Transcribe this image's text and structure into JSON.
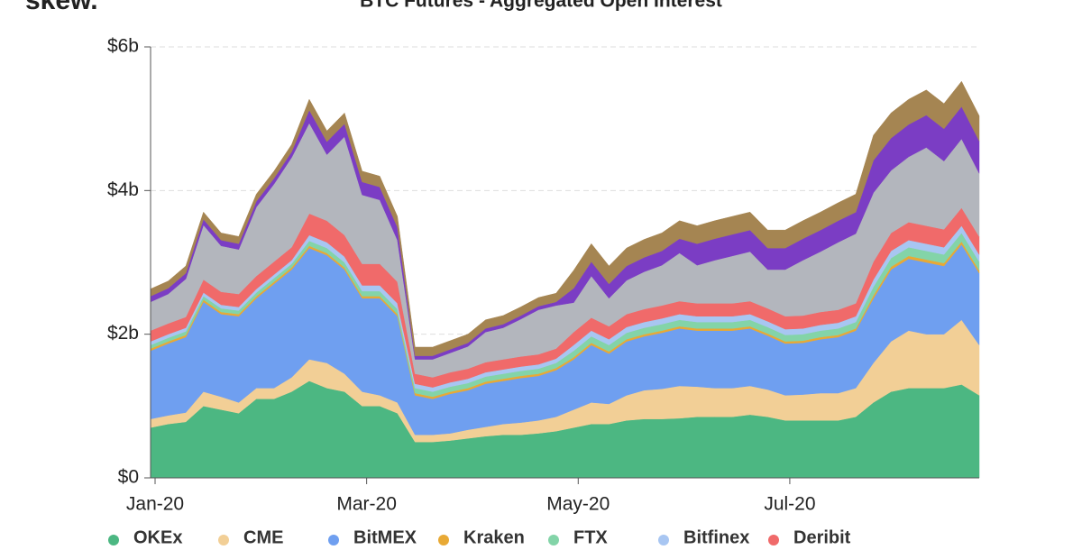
{
  "logo": "skew.",
  "chart_data": {
    "type": "stacked-area",
    "title": "BTC Futures - Aggregated Open Interest",
    "categories": [
      "Jan-20",
      null,
      null,
      null,
      null,
      null,
      null,
      null,
      null,
      null,
      null,
      null,
      "Mar-20",
      null,
      null,
      null,
      null,
      null,
      null,
      null,
      null,
      null,
      null,
      null,
      "May-20",
      null,
      null,
      null,
      null,
      null,
      null,
      null,
      null,
      null,
      null,
      null,
      "Jul-20",
      null,
      null,
      null,
      null,
      null,
      null,
      null,
      null,
      null,
      null,
      null
    ],
    "ylim": [
      0,
      6
    ],
    "yticks": [
      {
        "value": 0,
        "label": "$0"
      },
      {
        "value": 2,
        "label": "$2b"
      },
      {
        "value": 4,
        "label": "$4b"
      },
      {
        "value": 6,
        "label": "$6b"
      }
    ],
    "grid": true,
    "legend": "bottom",
    "series": [
      {
        "name": "OKEx",
        "color": "#4cb782",
        "values": [
          0.7,
          0.75,
          0.78,
          1.0,
          0.95,
          0.9,
          1.1,
          1.1,
          1.2,
          1.35,
          1.25,
          1.2,
          1.0,
          1.0,
          0.9,
          0.5,
          0.5,
          0.52,
          0.55,
          0.58,
          0.6,
          0.6,
          0.62,
          0.65,
          0.7,
          0.75,
          0.75,
          0.8,
          0.82,
          0.82,
          0.83,
          0.85,
          0.85,
          0.85,
          0.88,
          0.85,
          0.8,
          0.8,
          0.8,
          0.8,
          0.85,
          1.05,
          1.2,
          1.25,
          1.25,
          1.25,
          1.3,
          1.15
        ]
      },
      {
        "name": "CME",
        "color": "#f2cf96",
        "values": [
          0.12,
          0.12,
          0.13,
          0.2,
          0.18,
          0.15,
          0.15,
          0.15,
          0.2,
          0.3,
          0.35,
          0.25,
          0.2,
          0.15,
          0.15,
          0.1,
          0.1,
          0.1,
          0.12,
          0.13,
          0.15,
          0.17,
          0.18,
          0.2,
          0.25,
          0.3,
          0.28,
          0.35,
          0.4,
          0.42,
          0.45,
          0.42,
          0.4,
          0.4,
          0.4,
          0.38,
          0.35,
          0.36,
          0.38,
          0.38,
          0.4,
          0.55,
          0.7,
          0.8,
          0.75,
          0.75,
          0.9,
          0.7
        ]
      },
      {
        "name": "BitMEX",
        "color": "#6f9ff0",
        "values": [
          0.95,
          1.0,
          1.05,
          1.25,
          1.15,
          1.2,
          1.25,
          1.45,
          1.5,
          1.55,
          1.5,
          1.45,
          1.3,
          1.35,
          1.2,
          0.55,
          0.5,
          0.55,
          0.55,
          0.6,
          0.6,
          0.62,
          0.62,
          0.65,
          0.7,
          0.8,
          0.7,
          0.75,
          0.75,
          0.78,
          0.8,
          0.78,
          0.8,
          0.8,
          0.8,
          0.75,
          0.72,
          0.72,
          0.75,
          0.78,
          0.8,
          0.9,
          1.0,
          1.0,
          1.0,
          0.95,
          1.05,
          1.0
        ]
      },
      {
        "name": "Kraken",
        "color": "#e8a935",
        "values": [
          0.03,
          0.03,
          0.03,
          0.03,
          0.03,
          0.03,
          0.03,
          0.03,
          0.03,
          0.03,
          0.03,
          0.03,
          0.03,
          0.03,
          0.03,
          0.03,
          0.03,
          0.03,
          0.03,
          0.03,
          0.03,
          0.03,
          0.03,
          0.03,
          0.03,
          0.03,
          0.03,
          0.03,
          0.03,
          0.03,
          0.03,
          0.03,
          0.03,
          0.03,
          0.03,
          0.03,
          0.03,
          0.03,
          0.03,
          0.03,
          0.03,
          0.04,
          0.04,
          0.04,
          0.04,
          0.04,
          0.04,
          0.04
        ]
      },
      {
        "name": "FTX",
        "color": "#83d4a8",
        "values": [
          0.05,
          0.05,
          0.05,
          0.05,
          0.05,
          0.05,
          0.05,
          0.05,
          0.05,
          0.07,
          0.07,
          0.07,
          0.07,
          0.07,
          0.07,
          0.07,
          0.07,
          0.07,
          0.07,
          0.07,
          0.07,
          0.07,
          0.07,
          0.07,
          0.09,
          0.09,
          0.09,
          0.09,
          0.09,
          0.09,
          0.09,
          0.09,
          0.09,
          0.09,
          0.09,
          0.09,
          0.09,
          0.09,
          0.09,
          0.09,
          0.09,
          0.12,
          0.12,
          0.12,
          0.12,
          0.12,
          0.12,
          0.12
        ]
      },
      {
        "name": "Bitfinex",
        "color": "#a8c6f2",
        "values": [
          0.05,
          0.05,
          0.05,
          0.05,
          0.05,
          0.05,
          0.05,
          0.05,
          0.05,
          0.08,
          0.08,
          0.08,
          0.08,
          0.08,
          0.08,
          0.06,
          0.06,
          0.06,
          0.06,
          0.06,
          0.06,
          0.06,
          0.06,
          0.06,
          0.08,
          0.08,
          0.08,
          0.08,
          0.08,
          0.08,
          0.08,
          0.08,
          0.08,
          0.08,
          0.08,
          0.08,
          0.08,
          0.08,
          0.08,
          0.08,
          0.08,
          0.1,
          0.1,
          0.1,
          0.1,
          0.1,
          0.1,
          0.1
        ]
      },
      {
        "name": "Deribit",
        "color": "#f06a6a",
        "values": [
          0.15,
          0.15,
          0.15,
          0.18,
          0.18,
          0.18,
          0.18,
          0.18,
          0.18,
          0.3,
          0.3,
          0.3,
          0.3,
          0.3,
          0.3,
          0.14,
          0.14,
          0.14,
          0.14,
          0.14,
          0.14,
          0.14,
          0.14,
          0.14,
          0.18,
          0.18,
          0.18,
          0.18,
          0.18,
          0.18,
          0.18,
          0.18,
          0.18,
          0.18,
          0.18,
          0.18,
          0.18,
          0.18,
          0.18,
          0.18,
          0.18,
          0.25,
          0.25,
          0.25,
          0.25,
          0.25,
          0.25,
          0.25
        ]
      },
      {
        "color": "#b3b6bd",
        "values": [
          0.4,
          0.41,
          0.53,
          0.76,
          0.64,
          0.62,
          0.96,
          1.08,
          1.25,
          1.26,
          0.92,
          1.37,
          0.96,
          0.89,
          0.58,
          0.2,
          0.25,
          0.27,
          0.31,
          0.42,
          0.44,
          0.52,
          0.62,
          0.6,
          0.41,
          0.58,
          0.39,
          0.47,
          0.52,
          0.56,
          0.67,
          0.53,
          0.6,
          0.66,
          0.69,
          0.54,
          0.65,
          0.77,
          0.84,
          0.94,
          0.97,
          0.96,
          0.87,
          0.91,
          1.09,
          0.95,
          0.96,
          0.88
        ]
      },
      {
        "color": "#7b3dc4",
        "values": [
          0.08,
          0.08,
          0.08,
          0.08,
          0.08,
          0.08,
          0.08,
          0.08,
          0.08,
          0.18,
          0.18,
          0.18,
          0.18,
          0.18,
          0.18,
          0.05,
          0.05,
          0.05,
          0.05,
          0.05,
          0.05,
          0.05,
          0.05,
          0.05,
          0.2,
          0.2,
          0.2,
          0.2,
          0.2,
          0.2,
          0.2,
          0.3,
          0.3,
          0.3,
          0.3,
          0.3,
          0.3,
          0.3,
          0.3,
          0.3,
          0.3,
          0.45,
          0.45,
          0.45,
          0.45,
          0.45,
          0.45,
          0.45
        ]
      },
      {
        "color": "#a58552",
        "values": [
          0.1,
          0.1,
          0.1,
          0.1,
          0.1,
          0.1,
          0.1,
          0.1,
          0.1,
          0.15,
          0.15,
          0.15,
          0.15,
          0.15,
          0.15,
          0.12,
          0.12,
          0.12,
          0.12,
          0.12,
          0.12,
          0.12,
          0.12,
          0.12,
          0.25,
          0.25,
          0.25,
          0.25,
          0.25,
          0.25,
          0.25,
          0.25,
          0.25,
          0.25,
          0.25,
          0.25,
          0.25,
          0.25,
          0.25,
          0.25,
          0.25,
          0.35,
          0.35,
          0.35,
          0.35,
          0.35,
          0.35,
          0.35
        ]
      }
    ]
  }
}
